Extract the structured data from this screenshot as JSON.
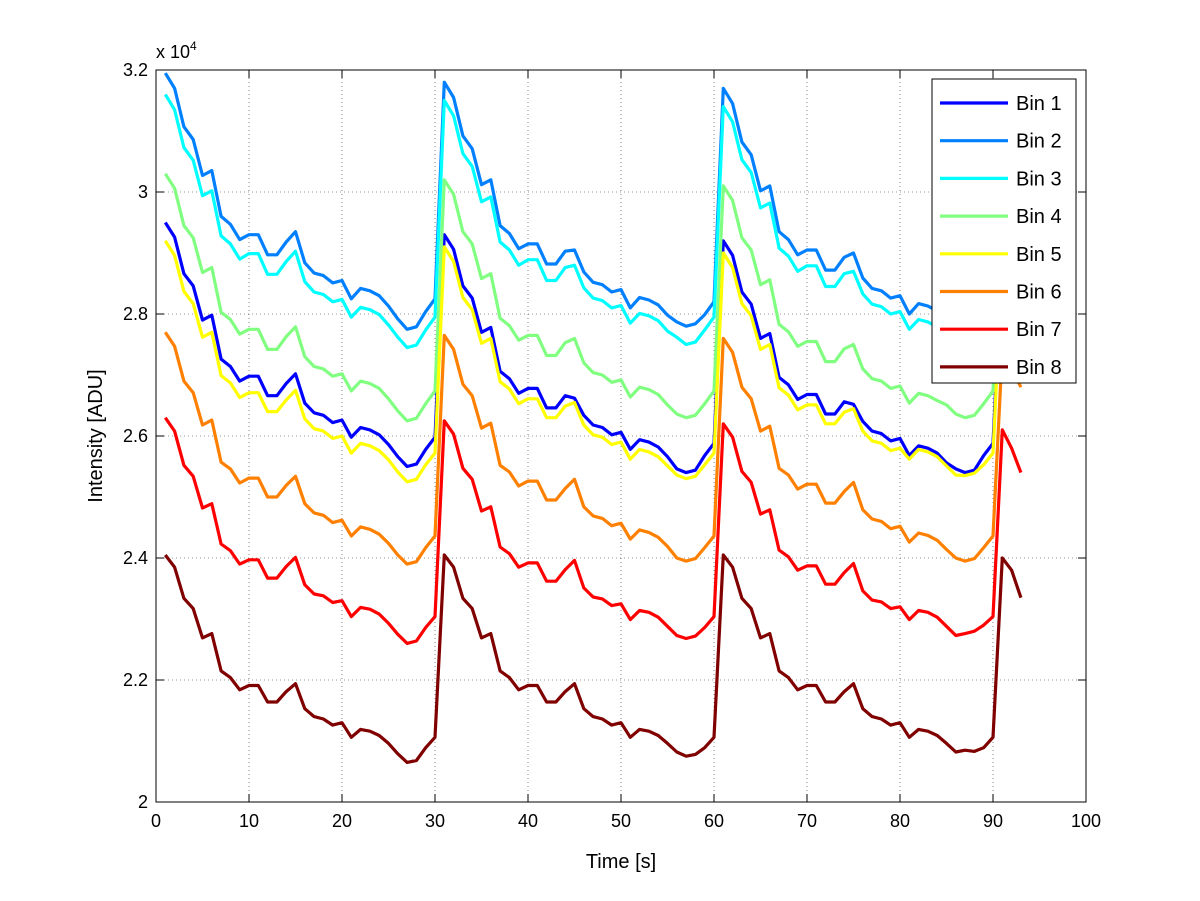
{
  "chart_data": {
    "type": "line",
    "title": "",
    "xlabel": "Time [s]",
    "ylabel": "Intensity [ADU]",
    "y_exponent_label": "x 10",
    "y_exponent_power": "4",
    "xlim": [
      0,
      100
    ],
    "ylim": [
      2.0,
      3.2
    ],
    "y_units": "x 10^4 ADU",
    "xticks": [
      "0",
      "10",
      "20",
      "30",
      "40",
      "50",
      "60",
      "70",
      "80",
      "90",
      "100"
    ],
    "yticks": [
      "2",
      "2.2",
      "2.4",
      "2.6",
      "2.8",
      "3",
      "3.2"
    ],
    "grid": true,
    "legend_position": "top-right",
    "x_start": 1,
    "x_step": 1,
    "series": [
      {
        "name": "Bin 1",
        "color": "#0000ff",
        "values": [
          2.95,
          2.926,
          2.866,
          2.846,
          2.79,
          2.798,
          2.726,
          2.714,
          2.69,
          2.698,
          2.698,
          2.666,
          2.666,
          2.686,
          2.702,
          2.654,
          2.638,
          2.634,
          2.622,
          2.626,
          2.598,
          2.614,
          2.61,
          2.602,
          2.586,
          2.566,
          2.55,
          2.554,
          2.578,
          2.598,
          2.93,
          2.906,
          2.846,
          2.826,
          2.77,
          2.778,
          2.706,
          2.694,
          2.67,
          2.678,
          2.678,
          2.646,
          2.646,
          2.666,
          2.662,
          2.634,
          2.618,
          2.614,
          2.602,
          2.606,
          2.578,
          2.594,
          2.59,
          2.582,
          2.566,
          2.546,
          2.54,
          2.544,
          2.568,
          2.588,
          2.92,
          2.896,
          2.836,
          2.816,
          2.76,
          2.768,
          2.696,
          2.684,
          2.66,
          2.668,
          2.668,
          2.636,
          2.636,
          2.656,
          2.652,
          2.624,
          2.608,
          2.604,
          2.592,
          2.596,
          2.568,
          2.584,
          2.58,
          2.572,
          2.556,
          2.546,
          2.54,
          2.544,
          2.568,
          2.588,
          2.9,
          2.88,
          2.85
        ]
      },
      {
        "name": "Bin 2",
        "color": "#0080ff",
        "values": [
          3.195,
          3.17,
          3.107,
          3.086,
          3.027,
          3.035,
          2.96,
          2.947,
          2.922,
          2.93,
          2.93,
          2.897,
          2.897,
          2.918,
          2.935,
          2.884,
          2.867,
          2.863,
          2.851,
          2.855,
          2.825,
          2.842,
          2.838,
          2.83,
          2.813,
          2.792,
          2.775,
          2.779,
          2.804,
          2.825,
          3.18,
          3.155,
          3.092,
          3.071,
          3.012,
          3.02,
          2.945,
          2.932,
          2.907,
          2.915,
          2.915,
          2.882,
          2.882,
          2.903,
          2.905,
          2.869,
          2.852,
          2.848,
          2.836,
          2.84,
          2.81,
          2.827,
          2.823,
          2.815,
          2.798,
          2.787,
          2.78,
          2.784,
          2.799,
          2.82,
          3.17,
          3.145,
          3.082,
          3.061,
          3.002,
          3.01,
          2.935,
          2.922,
          2.897,
          2.905,
          2.905,
          2.872,
          2.872,
          2.893,
          2.9,
          2.859,
          2.842,
          2.838,
          2.826,
          2.83,
          2.8,
          2.817,
          2.813,
          2.805,
          2.798,
          2.787,
          2.78,
          2.784,
          2.799,
          2.82,
          3.15,
          3.12,
          3.08
        ]
      },
      {
        "name": "Bin 3",
        "color": "#00ffff",
        "values": [
          3.16,
          3.135,
          3.073,
          3.052,
          2.994,
          3.002,
          2.928,
          2.915,
          2.89,
          2.899,
          2.899,
          2.865,
          2.865,
          2.886,
          2.903,
          2.853,
          2.836,
          2.832,
          2.82,
          2.824,
          2.795,
          2.811,
          2.807,
          2.799,
          2.782,
          2.762,
          2.745,
          2.749,
          2.774,
          2.795,
          3.15,
          3.125,
          3.063,
          3.042,
          2.984,
          2.992,
          2.918,
          2.905,
          2.88,
          2.889,
          2.889,
          2.855,
          2.855,
          2.876,
          2.88,
          2.843,
          2.826,
          2.822,
          2.81,
          2.814,
          2.785,
          2.801,
          2.797,
          2.789,
          2.772,
          2.762,
          2.75,
          2.754,
          2.774,
          2.795,
          3.14,
          3.115,
          3.053,
          3.032,
          2.974,
          2.982,
          2.908,
          2.895,
          2.87,
          2.879,
          2.879,
          2.845,
          2.845,
          2.866,
          2.87,
          2.833,
          2.816,
          2.812,
          2.8,
          2.804,
          2.775,
          2.791,
          2.787,
          2.779,
          2.772,
          2.762,
          2.75,
          2.754,
          2.774,
          2.795,
          3.12,
          3.09,
          3.05
        ]
      },
      {
        "name": "Bin 4",
        "color": "#80ff80",
        "values": [
          3.03,
          3.006,
          2.945,
          2.925,
          2.868,
          2.876,
          2.803,
          2.791,
          2.767,
          2.775,
          2.775,
          2.742,
          2.742,
          2.763,
          2.779,
          2.73,
          2.714,
          2.71,
          2.698,
          2.702,
          2.674,
          2.69,
          2.686,
          2.678,
          2.661,
          2.641,
          2.625,
          2.629,
          2.653,
          2.674,
          3.02,
          2.996,
          2.935,
          2.915,
          2.858,
          2.866,
          2.793,
          2.781,
          2.757,
          2.765,
          2.765,
          2.732,
          2.732,
          2.753,
          2.76,
          2.72,
          2.704,
          2.7,
          2.688,
          2.692,
          2.664,
          2.68,
          2.676,
          2.668,
          2.651,
          2.636,
          2.63,
          2.634,
          2.653,
          2.674,
          3.01,
          2.986,
          2.925,
          2.905,
          2.848,
          2.856,
          2.783,
          2.771,
          2.747,
          2.755,
          2.755,
          2.722,
          2.722,
          2.743,
          2.75,
          2.71,
          2.694,
          2.69,
          2.678,
          2.682,
          2.654,
          2.67,
          2.666,
          2.658,
          2.651,
          2.636,
          2.63,
          2.634,
          2.653,
          2.674,
          2.99,
          2.96,
          2.92
        ]
      },
      {
        "name": "Bin 5",
        "color": "#ffff00",
        "values": [
          2.92,
          2.896,
          2.837,
          2.817,
          2.762,
          2.77,
          2.699,
          2.687,
          2.663,
          2.671,
          2.671,
          2.64,
          2.64,
          2.659,
          2.675,
          2.628,
          2.612,
          2.608,
          2.596,
          2.6,
          2.572,
          2.588,
          2.584,
          2.576,
          2.561,
          2.541,
          2.525,
          2.529,
          2.553,
          2.572,
          2.91,
          2.886,
          2.827,
          2.807,
          2.752,
          2.76,
          2.689,
          2.677,
          2.653,
          2.661,
          2.661,
          2.63,
          2.63,
          2.649,
          2.655,
          2.618,
          2.602,
          2.598,
          2.586,
          2.59,
          2.562,
          2.578,
          2.574,
          2.566,
          2.551,
          2.536,
          2.53,
          2.534,
          2.553,
          2.572,
          2.9,
          2.876,
          2.817,
          2.797,
          2.742,
          2.75,
          2.679,
          2.667,
          2.643,
          2.651,
          2.651,
          2.62,
          2.62,
          2.639,
          2.645,
          2.608,
          2.592,
          2.588,
          2.576,
          2.58,
          2.562,
          2.578,
          2.574,
          2.566,
          2.551,
          2.536,
          2.535,
          2.539,
          2.553,
          2.572,
          2.89,
          2.86,
          2.83
        ]
      },
      {
        "name": "Bin 6",
        "color": "#ff8000",
        "values": [
          2.77,
          2.747,
          2.69,
          2.671,
          2.618,
          2.626,
          2.557,
          2.546,
          2.523,
          2.531,
          2.531,
          2.5,
          2.5,
          2.519,
          2.534,
          2.489,
          2.474,
          2.47,
          2.458,
          2.462,
          2.436,
          2.451,
          2.447,
          2.439,
          2.424,
          2.405,
          2.39,
          2.394,
          2.417,
          2.436,
          2.765,
          2.742,
          2.685,
          2.666,
          2.613,
          2.621,
          2.552,
          2.541,
          2.518,
          2.526,
          2.526,
          2.495,
          2.495,
          2.514,
          2.529,
          2.484,
          2.469,
          2.465,
          2.453,
          2.457,
          2.431,
          2.446,
          2.442,
          2.434,
          2.419,
          2.4,
          2.395,
          2.399,
          2.417,
          2.436,
          2.76,
          2.737,
          2.68,
          2.661,
          2.608,
          2.616,
          2.547,
          2.536,
          2.513,
          2.521,
          2.521,
          2.49,
          2.49,
          2.509,
          2.524,
          2.479,
          2.464,
          2.46,
          2.448,
          2.452,
          2.426,
          2.441,
          2.437,
          2.429,
          2.414,
          2.4,
          2.395,
          2.399,
          2.417,
          2.436,
          2.74,
          2.71,
          2.68
        ]
      },
      {
        "name": "Bin 7",
        "color": "#ff0000",
        "values": [
          2.63,
          2.608,
          2.552,
          2.534,
          2.482,
          2.489,
          2.423,
          2.412,
          2.39,
          2.397,
          2.397,
          2.367,
          2.367,
          2.386,
          2.401,
          2.356,
          2.341,
          2.338,
          2.327,
          2.33,
          2.304,
          2.319,
          2.316,
          2.308,
          2.293,
          2.275,
          2.26,
          2.264,
          2.286,
          2.304,
          2.625,
          2.603,
          2.547,
          2.529,
          2.477,
          2.484,
          2.418,
          2.407,
          2.385,
          2.392,
          2.392,
          2.362,
          2.362,
          2.381,
          2.396,
          2.351,
          2.336,
          2.333,
          2.322,
          2.325,
          2.299,
          2.314,
          2.311,
          2.303,
          2.288,
          2.273,
          2.268,
          2.272,
          2.286,
          2.304,
          2.62,
          2.598,
          2.542,
          2.524,
          2.472,
          2.479,
          2.413,
          2.402,
          2.38,
          2.387,
          2.387,
          2.357,
          2.357,
          2.376,
          2.391,
          2.346,
          2.331,
          2.328,
          2.317,
          2.32,
          2.299,
          2.314,
          2.311,
          2.303,
          2.288,
          2.273,
          2.276,
          2.28,
          2.29,
          2.304,
          2.61,
          2.58,
          2.54
        ]
      },
      {
        "name": "Bin 8",
        "color": "#800000",
        "values": [
          2.405,
          2.385,
          2.334,
          2.317,
          2.269,
          2.276,
          2.215,
          2.204,
          2.184,
          2.191,
          2.191,
          2.164,
          2.164,
          2.181,
          2.194,
          2.153,
          2.14,
          2.136,
          2.126,
          2.13,
          2.106,
          2.119,
          2.116,
          2.109,
          2.096,
          2.079,
          2.065,
          2.068,
          2.089,
          2.106,
          2.405,
          2.385,
          2.334,
          2.317,
          2.269,
          2.276,
          2.215,
          2.204,
          2.184,
          2.191,
          2.191,
          2.164,
          2.164,
          2.181,
          2.194,
          2.153,
          2.14,
          2.136,
          2.126,
          2.13,
          2.106,
          2.119,
          2.116,
          2.109,
          2.096,
          2.082,
          2.075,
          2.078,
          2.089,
          2.106,
          2.405,
          2.385,
          2.334,
          2.317,
          2.269,
          2.276,
          2.215,
          2.204,
          2.184,
          2.191,
          2.191,
          2.164,
          2.164,
          2.181,
          2.194,
          2.153,
          2.14,
          2.136,
          2.126,
          2.13,
          2.106,
          2.119,
          2.116,
          2.109,
          2.096,
          2.082,
          2.085,
          2.083,
          2.089,
          2.106,
          2.4,
          2.38,
          2.335
        ]
      }
    ]
  }
}
